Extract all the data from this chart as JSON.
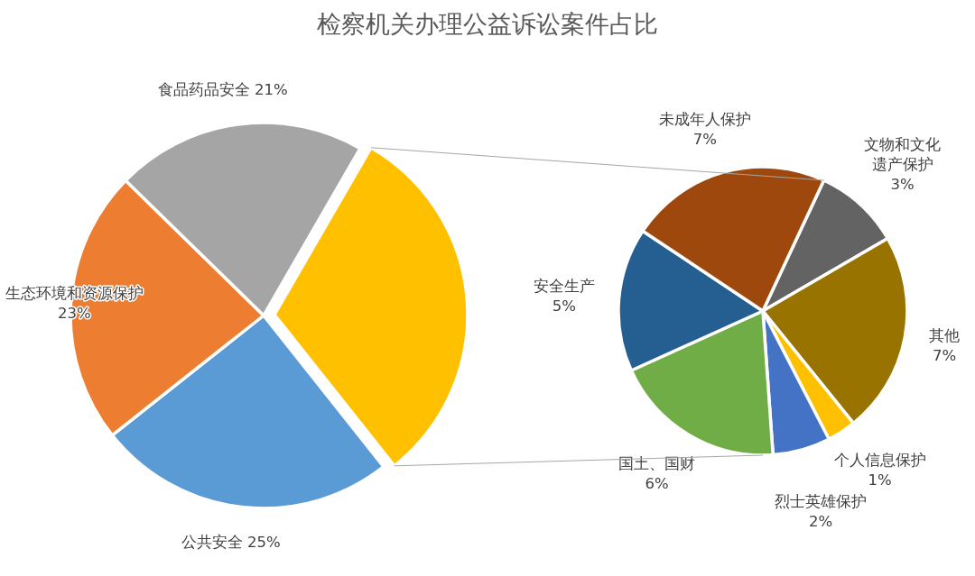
{
  "chart_data": [
    {
      "type": "pie",
      "title": "检察机关办理公益诉讼案件占比",
      "categories": [
        null,
        "公共安全",
        "生态环境和资源保护",
        "食品药品安全"
      ],
      "values": [
        31,
        25,
        23,
        21
      ],
      "colors": [
        "#ffc000",
        "#5b9bd5",
        "#ed7d31",
        "#a5a5a5"
      ],
      "value_labels": [
        null,
        "25%",
        "23%",
        "21%"
      ]
    },
    {
      "type": "pie",
      "categories": [
        "文物和文化遗产保护",
        "其他",
        "个人信息保护",
        "烈士英雄保护",
        "国土、国财",
        "安全生产",
        "未成年人保护"
      ],
      "values": [
        3,
        7,
        1,
        2,
        6,
        5,
        7
      ],
      "colors": [
        "#636363",
        "#997300",
        "#ffc000",
        "#4472c4",
        "#70ad47",
        "#255e91",
        "#9e480e"
      ],
      "value_labels": [
        "3%",
        "7%",
        "1%",
        "2%",
        "6%",
        "5%",
        "7%"
      ]
    }
  ]
}
